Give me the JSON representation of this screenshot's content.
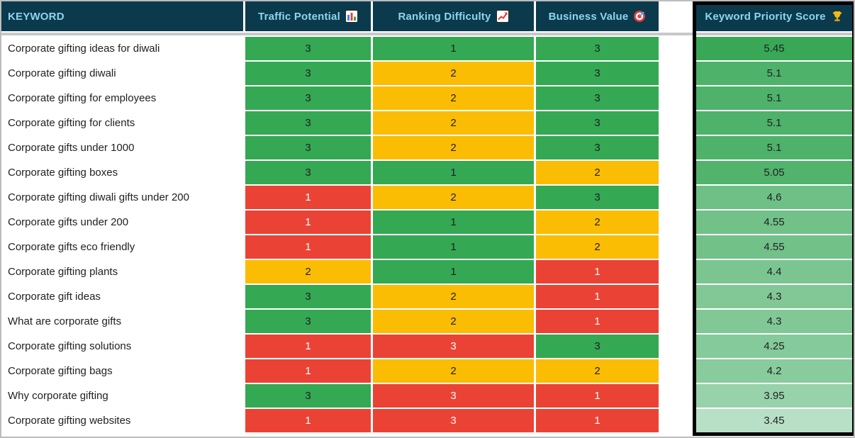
{
  "palette": {
    "header_bg": "#0B3A4D",
    "header_text": "#8FD4F0",
    "green": "#34A853",
    "yellow": "#FBBC04",
    "red": "#EA4335",
    "cell_text_dark": "#202124",
    "cell_text_light": "#FFFFFF",
    "keyword_text": "#202124",
    "divider": "#C9C9C9",
    "frame_border": "#BDBDBD"
  },
  "header": {
    "keyword_label": "KEYWORD",
    "columns": [
      {
        "label": "Traffic Potential",
        "icon": "📊",
        "icon_name": "bar-chart-icon"
      },
      {
        "label": "Ranking Difficulty",
        "icon": "📈",
        "icon_name": "chart-increasing-icon"
      },
      {
        "label": "Business Value",
        "icon": "🎯",
        "icon_name": "target-icon"
      },
      {
        "label": "Keyword Priority Score",
        "icon": "🏆",
        "icon_name": "trophy-icon"
      }
    ]
  },
  "rows": [
    {
      "keyword": "Corporate gifting ideas for diwali",
      "traffic_potential": {
        "value": "3",
        "color": "green"
      },
      "ranking_difficulty": {
        "value": "1",
        "color": "green"
      },
      "business_value": {
        "value": "3",
        "color": "green"
      },
      "score": "5.45",
      "score_color": "#38A857"
    },
    {
      "keyword": "Corporate gifting diwali",
      "traffic_potential": {
        "value": "3",
        "color": "green"
      },
      "ranking_difficulty": {
        "value": "2",
        "color": "yellow"
      },
      "business_value": {
        "value": "3",
        "color": "green"
      },
      "score": "5.1",
      "score_color": "#4EB26A"
    },
    {
      "keyword": "Corporate gifting for employees",
      "traffic_potential": {
        "value": "3",
        "color": "green"
      },
      "ranking_difficulty": {
        "value": "2",
        "color": "yellow"
      },
      "business_value": {
        "value": "3",
        "color": "green"
      },
      "score": "5.1",
      "score_color": "#4EB26A"
    },
    {
      "keyword": "Corporate gifting for clients",
      "traffic_potential": {
        "value": "3",
        "color": "green"
      },
      "ranking_difficulty": {
        "value": "2",
        "color": "yellow"
      },
      "business_value": {
        "value": "3",
        "color": "green"
      },
      "score": "5.1",
      "score_color": "#4EB26A"
    },
    {
      "keyword": "Corporate gifts under 1000",
      "traffic_potential": {
        "value": "3",
        "color": "green"
      },
      "ranking_difficulty": {
        "value": "2",
        "color": "yellow"
      },
      "business_value": {
        "value": "3",
        "color": "green"
      },
      "score": "5.1",
      "score_color": "#4EB26A"
    },
    {
      "keyword": "Corporate gifting boxes",
      "traffic_potential": {
        "value": "3",
        "color": "green"
      },
      "ranking_difficulty": {
        "value": "1",
        "color": "green"
      },
      "business_value": {
        "value": "2",
        "color": "yellow"
      },
      "score": "5.05",
      "score_color": "#52B36D"
    },
    {
      "keyword": "Corporate gifting diwali gifts under 200",
      "traffic_potential": {
        "value": "1",
        "color": "red"
      },
      "ranking_difficulty": {
        "value": "2",
        "color": "yellow"
      },
      "business_value": {
        "value": "3",
        "color": "green"
      },
      "score": "4.6",
      "score_color": "#6EC086"
    },
    {
      "keyword": "Corporate gifts under 200",
      "traffic_potential": {
        "value": "1",
        "color": "red"
      },
      "ranking_difficulty": {
        "value": "1",
        "color": "green"
      },
      "business_value": {
        "value": "2",
        "color": "yellow"
      },
      "score": "4.55",
      "score_color": "#72C189"
    },
    {
      "keyword": "Corporate gifts eco friendly",
      "traffic_potential": {
        "value": "1",
        "color": "red"
      },
      "ranking_difficulty": {
        "value": "1",
        "color": "green"
      },
      "business_value": {
        "value": "2",
        "color": "yellow"
      },
      "score": "4.55",
      "score_color": "#72C189"
    },
    {
      "keyword": "Corporate gifting plants",
      "traffic_potential": {
        "value": "2",
        "color": "yellow"
      },
      "ranking_difficulty": {
        "value": "1",
        "color": "green"
      },
      "business_value": {
        "value": "1",
        "color": "red"
      },
      "score": "4.4",
      "score_color": "#7BC591"
    },
    {
      "keyword": "Corporate gift ideas",
      "traffic_potential": {
        "value": "3",
        "color": "green"
      },
      "ranking_difficulty": {
        "value": "2",
        "color": "yellow"
      },
      "business_value": {
        "value": "1",
        "color": "red"
      },
      "score": "4.3",
      "score_color": "#82C897"
    },
    {
      "keyword": "What are corporate gifts",
      "traffic_potential": {
        "value": "3",
        "color": "green"
      },
      "ranking_difficulty": {
        "value": "2",
        "color": "yellow"
      },
      "business_value": {
        "value": "1",
        "color": "red"
      },
      "score": "4.3",
      "score_color": "#82C897"
    },
    {
      "keyword": "Corporate gifting solutions",
      "traffic_potential": {
        "value": "1",
        "color": "red"
      },
      "ranking_difficulty": {
        "value": "3",
        "color": "red"
      },
      "business_value": {
        "value": "3",
        "color": "green"
      },
      "score": "4.25",
      "score_color": "#85CA9A"
    },
    {
      "keyword": "Corporate gifting bags",
      "traffic_potential": {
        "value": "1",
        "color": "red"
      },
      "ranking_difficulty": {
        "value": "2",
        "color": "yellow"
      },
      "business_value": {
        "value": "2",
        "color": "yellow"
      },
      "score": "4.2",
      "score_color": "#88CB9C"
    },
    {
      "keyword": "Why corporate gifting",
      "traffic_potential": {
        "value": "3",
        "color": "green"
      },
      "ranking_difficulty": {
        "value": "3",
        "color": "red"
      },
      "business_value": {
        "value": "1",
        "color": "red"
      },
      "score": "3.95",
      "score_color": "#98D2AA"
    },
    {
      "keyword": "Corporate gifting websites",
      "traffic_potential": {
        "value": "1",
        "color": "red"
      },
      "ranking_difficulty": {
        "value": "3",
        "color": "red"
      },
      "business_value": {
        "value": "1",
        "color": "red"
      },
      "score": "3.45",
      "score_color": "#B8E0C6"
    }
  ]
}
